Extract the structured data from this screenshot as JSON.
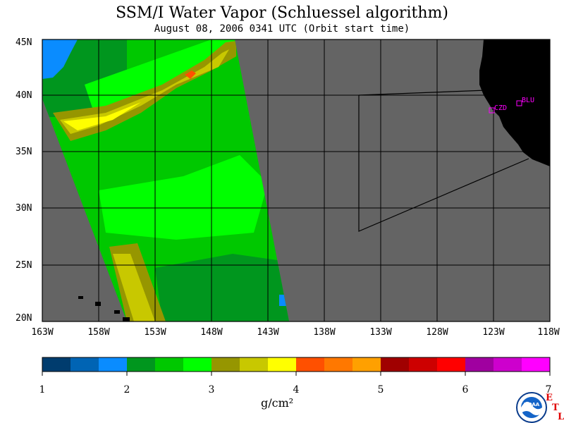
{
  "title": "SSM/I Water Vapor (Schluessel algorithm)",
  "subtitle": "August 08, 2006  0341 UTC  (Orbit start time)",
  "lat_labels": [
    "45N",
    "40N",
    "35N",
    "30N",
    "25N",
    "20N"
  ],
  "lon_labels": [
    "163W",
    "158W",
    "153W",
    "148W",
    "143W",
    "138W",
    "133W",
    "128W",
    "123W",
    "118W"
  ],
  "colorbar": {
    "colors": [
      "#003c6e",
      "#0064b4",
      "#0a8cff",
      "#00961e",
      "#00c800",
      "#00ff00",
      "#969600",
      "#c8c800",
      "#ffff00",
      "#ff5000",
      "#ff7800",
      "#ffa000",
      "#a00000",
      "#cd0000",
      "#ff0000",
      "#a000a0",
      "#cd00cd",
      "#ff00ff"
    ],
    "tick_labels": [
      "1",
      "2",
      "3",
      "4",
      "5",
      "6",
      "7"
    ],
    "unit_label": "g/cm²"
  },
  "stations": [
    {
      "name": "CZD"
    },
    {
      "name": "BLU"
    }
  ],
  "logo": {
    "icon": "noaa-logo-icon",
    "text": "NOAA",
    "etl_letters": [
      "E",
      "T",
      "L"
    ]
  },
  "colors": {
    "ocean_nodata": "#646464",
    "land": "#000000",
    "grid": "#000000"
  }
}
